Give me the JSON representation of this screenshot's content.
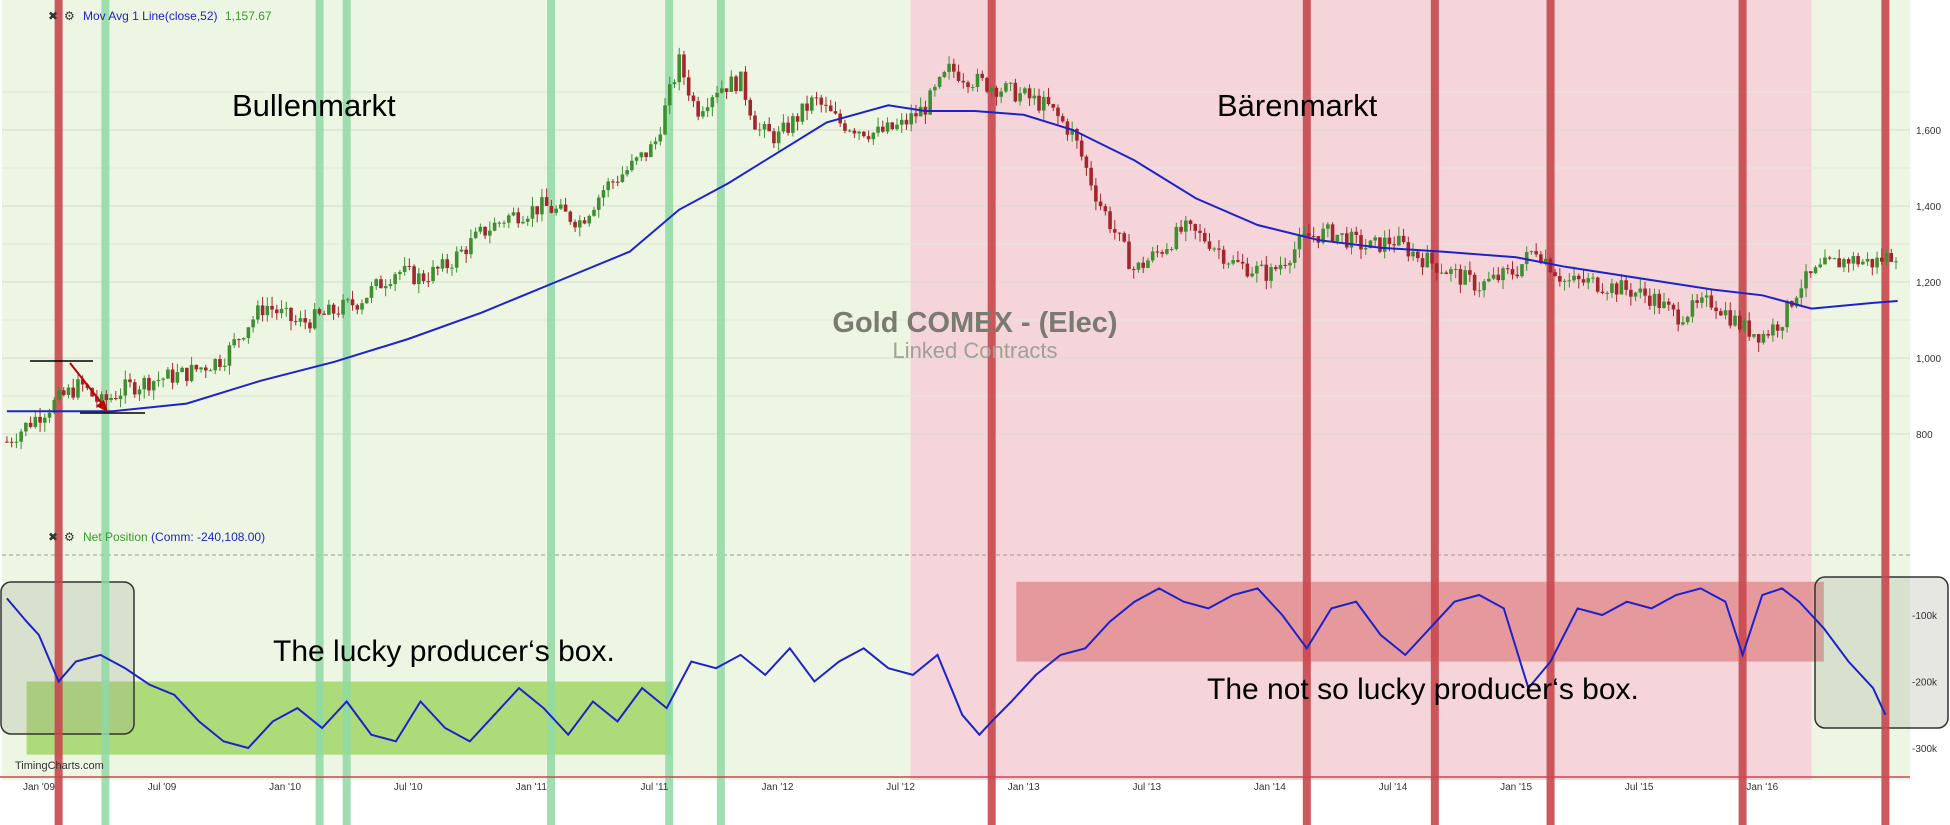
{
  "colors": {
    "bull_bg": "#edf6e3",
    "bear_bg": "#f5d5d9",
    "red_line": "#c8474c",
    "green_line": "#8fd8a4",
    "ma_line": "#1f22c8",
    "candle_up": "#3f8f32",
    "candle_down": "#a3262c",
    "green_box": "#a6d86e",
    "red_box": "#e08488",
    "axis_text": "#333333",
    "indicator_label": "#1f22c8",
    "indicator_value": "#3a9a2a"
  },
  "header": {
    "close_icon": "✖",
    "gear_icon": "⚙",
    "upper_indicator_name": "Mov Avg 1 Line(close,52)",
    "upper_indicator_value": "1,157.67",
    "lower_indicator_name": "Net Position",
    "lower_indicator_args": "(Comm: -240,108.00)"
  },
  "watermark": {
    "title": "Gold COMEX - (Elec)",
    "subtitle": "Linked Contracts"
  },
  "annotations": {
    "bull": "Bullenmarkt",
    "bear": "Bärenmarkt",
    "lucky_box": "The lucky producer‘s box.",
    "not_lucky_box": "The not so lucky producer‘s box."
  },
  "source": "TimingCharts.com",
  "chart_data": [
    {
      "type": "line",
      "title": "Gold COMEX - (Elec)",
      "subtitle": "Linked Contracts",
      "y_ticks": [
        "1,600",
        "1,400",
        "1,200",
        "1,000",
        "800"
      ],
      "y_tick_values": [
        1600,
        1400,
        1200,
        1000,
        800
      ],
      "x_ticks": [
        "Jan '09",
        "Jul '09",
        "Jan '10",
        "Jul '10",
        "Jan '11",
        "Jul '11",
        "Jan '12",
        "Jul '12",
        "Jan '13",
        "Jul '13",
        "Jan '14",
        "Jul '14",
        "Jan '15",
        "Jul '15",
        "Jan '16"
      ],
      "x_range": [
        2008.85,
        2016.6
      ],
      "ylim": [
        700,
        1900
      ],
      "regimes": [
        {
          "label": "Bullenmarkt",
          "from": 2008.85,
          "to": 2012.54
        },
        {
          "label": "Bärenmarkt",
          "from": 2012.54,
          "to": 2016.2
        }
      ],
      "price_series": {
        "name": "price",
        "x": [
          2008.87,
          2009.0,
          2009.1,
          2009.17,
          2009.25,
          2009.35,
          2009.45,
          2009.6,
          2009.75,
          2009.85,
          2009.92,
          2010.05,
          2010.15,
          2010.3,
          2010.45,
          2010.55,
          2010.65,
          2010.8,
          2010.9,
          2011.05,
          2011.2,
          2011.3,
          2011.4,
          2011.5,
          2011.6,
          2011.67,
          2011.75,
          2011.85,
          2011.92,
          2012.0,
          2012.15,
          2012.25,
          2012.4,
          2012.5,
          2012.6,
          2012.7,
          2012.8,
          2012.9,
          2013.0,
          2013.1,
          2013.2,
          2013.3,
          2013.45,
          2013.55,
          2013.65,
          2013.75,
          2013.85,
          2014.0,
          2014.15,
          2014.25,
          2014.4,
          2014.5,
          2014.6,
          2014.75,
          2014.85,
          2015.0,
          2015.08,
          2015.2,
          2015.3,
          2015.45,
          2015.55,
          2015.65,
          2015.8,
          2015.92,
          2016.0,
          2016.08,
          2016.15,
          2016.25,
          2016.35,
          2016.45,
          2016.55
        ],
        "values": [
          780,
          850,
          900,
          930,
          880,
          920,
          940,
          960,
          1000,
          1090,
          1140,
          1090,
          1110,
          1150,
          1230,
          1210,
          1240,
          1330,
          1370,
          1400,
          1360,
          1450,
          1500,
          1560,
          1780,
          1650,
          1710,
          1730,
          1600,
          1580,
          1680,
          1620,
          1590,
          1610,
          1660,
          1760,
          1730,
          1710,
          1690,
          1660,
          1590,
          1420,
          1230,
          1280,
          1340,
          1310,
          1250,
          1220,
          1320,
          1330,
          1290,
          1310,
          1270,
          1220,
          1190,
          1230,
          1290,
          1200,
          1200,
          1180,
          1160,
          1110,
          1150,
          1080,
          1060,
          1100,
          1190,
          1240,
          1260,
          1250,
          1280
        ]
      },
      "moving_average": {
        "name": "Mov Avg 1 Line(close,52)",
        "x": [
          2008.87,
          2009.3,
          2009.6,
          2009.9,
          2010.2,
          2010.5,
          2010.8,
          2011.1,
          2011.4,
          2011.6,
          2011.8,
          2012.0,
          2012.2,
          2012.45,
          2012.6,
          2012.8,
          2013.0,
          2013.2,
          2013.45,
          2013.7,
          2013.95,
          2014.2,
          2014.45,
          2014.7,
          2015.0,
          2015.2,
          2015.4,
          2015.6,
          2015.8,
          2016.0,
          2016.2,
          2016.45,
          2016.55
        ],
        "values": [
          860,
          860,
          880,
          940,
          990,
          1050,
          1120,
          1200,
          1280,
          1390,
          1460,
          1540,
          1620,
          1665,
          1650,
          1650,
          1640,
          1600,
          1520,
          1420,
          1350,
          1310,
          1290,
          1280,
          1265,
          1240,
          1220,
          1200,
          1180,
          1165,
          1130,
          1145,
          1150
        ]
      },
      "markers": {
        "red_lines_x": [
          2009.08,
          2012.87,
          2014.15,
          2014.67,
          2015.14,
          2015.92,
          2016.5
        ],
        "green_lines_x": [
          2009.27,
          2010.14,
          2010.25,
          2011.08,
          2011.56,
          2011.77
        ]
      }
    },
    {
      "type": "line",
      "title": "Net Position",
      "legend": "Net Position(Comm: -240,108.00)",
      "y_ticks": [
        "-100k",
        "-200k",
        "-300k"
      ],
      "y_tick_values": [
        -100000,
        -200000,
        -300000
      ],
      "ylim": [
        -330000,
        -40000
      ],
      "series": [
        {
          "name": "Net Position",
          "x": [
            2008.87,
            2008.95,
            2009.0,
            2009.08,
            2009.15,
            2009.25,
            2009.35,
            2009.45,
            2009.55,
            2009.65,
            2009.75,
            2009.85,
            2009.95,
            2010.05,
            2010.15,
            2010.25,
            2010.35,
            2010.45,
            2010.55,
            2010.65,
            2010.75,
            2010.85,
            2010.95,
            2011.05,
            2011.15,
            2011.25,
            2011.35,
            2011.45,
            2011.55,
            2011.65,
            2011.75,
            2011.85,
            2011.95,
            2012.05,
            2012.15,
            2012.25,
            2012.35,
            2012.45,
            2012.55,
            2012.65,
            2012.75,
            2012.82,
            2012.87,
            2012.95,
            2013.05,
            2013.15,
            2013.25,
            2013.35,
            2013.45,
            2013.55,
            2013.65,
            2013.75,
            2013.85,
            2013.95,
            2014.05,
            2014.15,
            2014.25,
            2014.35,
            2014.45,
            2014.55,
            2014.65,
            2014.75,
            2014.85,
            2014.95,
            2015.05,
            2015.14,
            2015.25,
            2015.35,
            2015.45,
            2015.55,
            2015.65,
            2015.75,
            2015.85,
            2015.92,
            2016.0,
            2016.08,
            2016.15,
            2016.25,
            2016.35,
            2016.45,
            2016.5
          ],
          "values": [
            -75000,
            -110000,
            -130000,
            -200000,
            -170000,
            -160000,
            -180000,
            -205000,
            -220000,
            -260000,
            -290000,
            -300000,
            -260000,
            -240000,
            -270000,
            -230000,
            -280000,
            -290000,
            -230000,
            -270000,
            -290000,
            -250000,
            -210000,
            -240000,
            -280000,
            -230000,
            -260000,
            -210000,
            -240000,
            -170000,
            -180000,
            -160000,
            -190000,
            -150000,
            -200000,
            -170000,
            -150000,
            -180000,
            -190000,
            -160000,
            -250000,
            -280000,
            -260000,
            -230000,
            -190000,
            -160000,
            -150000,
            -110000,
            -80000,
            -60000,
            -80000,
            -90000,
            -70000,
            -60000,
            -100000,
            -150000,
            -90000,
            -80000,
            -130000,
            -160000,
            -120000,
            -80000,
            -70000,
            -90000,
            -210000,
            -170000,
            -90000,
            -100000,
            -80000,
            -90000,
            -70000,
            -60000,
            -80000,
            -160000,
            -70000,
            -60000,
            -80000,
            -120000,
            -170000,
            -210000,
            -250000
          ]
        }
      ],
      "boxes": [
        {
          "label": "The lucky producer‘s box.",
          "from": 2008.95,
          "to": 2011.57,
          "y_from": -200000,
          "y_to": -310000
        },
        {
          "label": "The not so lucky producer‘s box.",
          "from": 2012.97,
          "to": 2016.25,
          "y_from": -50000,
          "y_to": -170000
        }
      ]
    }
  ]
}
